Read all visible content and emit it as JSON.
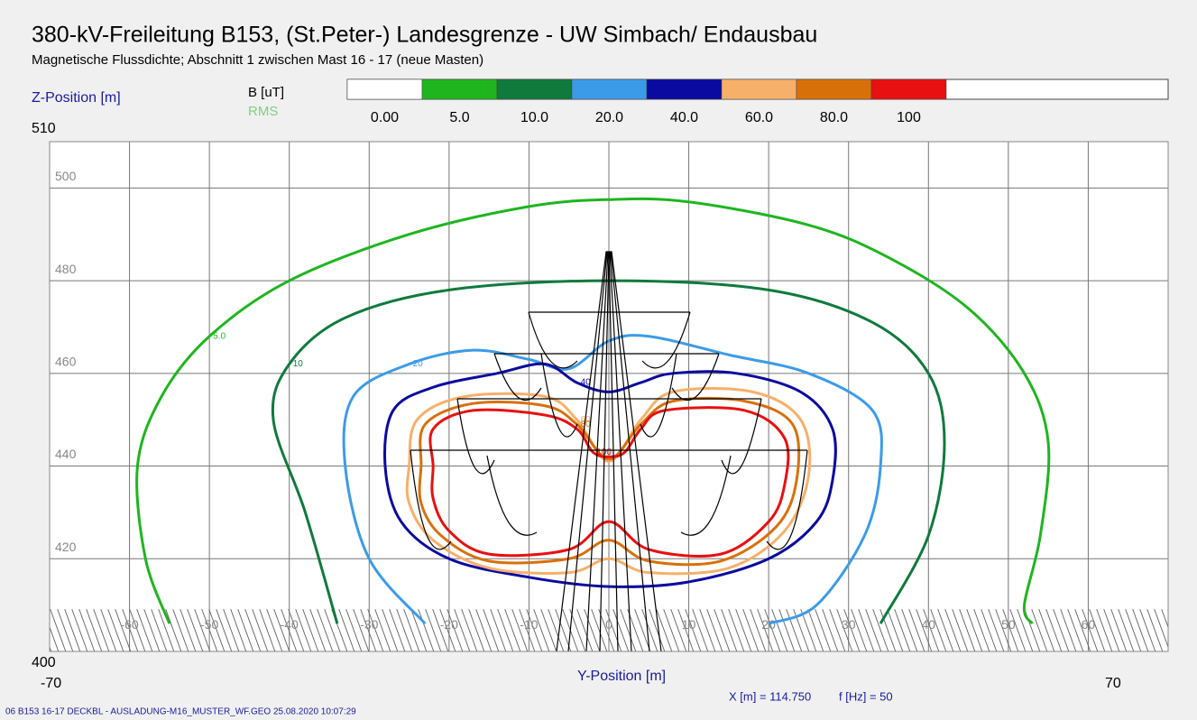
{
  "chart_data": {
    "type": "contour",
    "title": "380-kV-Freileitung B153, (St.Peter-) Landesgrenze - UW Simbach/ Endausbau",
    "subtitle": "Magnetische Flussdichte; Abschnitt 1 zwischen Mast 16 - 17 (neue Masten)",
    "y_axis_label": "Z-Position [m]",
    "x_axis_label": "Y-Position [m]",
    "legend_title": "B [uT]",
    "legend_subtitle": "RMS",
    "legend_levels": [
      {
        "value": 0,
        "label": "0.00",
        "color": "#ffffff"
      },
      {
        "value": 5,
        "label": "5.0",
        "color": "#1fb51f"
      },
      {
        "value": 10,
        "label": "10.0",
        "color": "#0f7a3c"
      },
      {
        "value": 20,
        "label": "20.0",
        "color": "#3c9be8"
      },
      {
        "value": 40,
        "label": "40.0",
        "color": "#0a0aa0"
      },
      {
        "value": 60,
        "label": "60.0",
        "color": "#f7b06a"
      },
      {
        "value": 80,
        "label": "80.0",
        "color": "#d8700a"
      },
      {
        "value": 100,
        "label": "100",
        "color": "#e81010"
      }
    ],
    "xlim": [
      -70,
      70
    ],
    "ylim": [
      400,
      510
    ],
    "xticks": [
      -60,
      -50,
      -40,
      -30,
      -20,
      -10,
      0,
      10,
      20,
      30,
      40,
      50,
      60
    ],
    "yticks": [
      420,
      440,
      460,
      480,
      500
    ],
    "grid": true,
    "ground_level": 406,
    "info_x": "X [m] = 114.750",
    "info_f": "f [Hz] = 50",
    "footer": "06 B153 16-17 DECKBL - AUSLADUNG-M16_MUSTER_WF.GEO  25.08.2020  10:07:29",
    "series": [
      {
        "name": "5.0",
        "color": "#1fb51f",
        "closed": false,
        "x": [
          -55,
          -58,
          -59,
          -56,
          -50,
          -40,
          -25,
          -10,
          0,
          10,
          25,
          35,
          45,
          52,
          55,
          54,
          52,
          53
        ],
        "y": [
          406,
          420,
          440,
          455,
          468,
          480,
          490,
          496,
          497.5,
          497,
          492,
          485,
          474,
          460,
          445,
          425,
          410,
          406
        ]
      },
      {
        "name": "10",
        "color": "#0f7a3c",
        "closed": false,
        "x": [
          -34,
          -38,
          -42,
          -40,
          -33,
          -20,
          0,
          20,
          33,
          40,
          42,
          40,
          34
        ],
        "y": [
          406,
          430,
          450,
          462,
          472,
          478,
          480,
          478,
          471,
          460,
          445,
          425,
          406
        ]
      },
      {
        "name": "20",
        "color": "#3c9be8",
        "closed": false,
        "x": [
          -23,
          -30,
          -33,
          -32,
          -25,
          -17,
          -10,
          -5,
          0,
          5,
          15,
          25,
          33,
          34,
          32,
          26,
          20
        ],
        "y": [
          406,
          420,
          440,
          455,
          462,
          465,
          463,
          461,
          467,
          468,
          464,
          460,
          452,
          440,
          425,
          410,
          406
        ]
      },
      {
        "name": "40",
        "color": "#0a0aa0",
        "closed": true,
        "x": [
          -28,
          -27,
          -22,
          -14,
          -8,
          -4,
          0,
          4,
          8,
          16,
          24,
          28,
          28,
          26,
          20,
          10,
          0,
          -10,
          -20,
          -26
        ],
        "y": [
          440,
          452,
          457,
          460,
          462,
          458,
          456,
          458,
          460,
          460,
          456,
          448,
          437,
          428,
          420,
          415,
          414,
          416,
          420,
          428
        ]
      },
      {
        "name": "60",
        "color": "#f7b06a",
        "closed": true,
        "x": [
          -25,
          -24,
          -18,
          -8,
          -4,
          0,
          4,
          8,
          18,
          24,
          25,
          22,
          15,
          5,
          0,
          -5,
          -15,
          -22,
          -25
        ],
        "y": [
          440,
          450,
          455,
          455,
          450,
          441,
          450,
          456,
          456,
          450,
          438,
          426,
          418,
          417,
          420,
          417,
          418,
          424,
          432
        ]
      },
      {
        "name": "80",
        "color": "#d8700a",
        "closed": true,
        "x": [
          -23.5,
          -23,
          -17,
          -8,
          -4,
          0,
          4,
          8,
          17,
          23,
          23.5,
          21,
          14,
          5,
          0,
          -5,
          -15,
          -21,
          -23.5
        ],
        "y": [
          440,
          449,
          453.5,
          453,
          449,
          441.5,
          449,
          454,
          454,
          449,
          437,
          427,
          419.5,
          419.5,
          424,
          420,
          419.5,
          425,
          432
        ]
      },
      {
        "name": "100",
        "color": "#e81010",
        "closed": true,
        "x": [
          -22,
          -22,
          -17,
          -8,
          -4,
          -2,
          0,
          2,
          4,
          7,
          17,
          22,
          22,
          20,
          14,
          5,
          0,
          -5,
          -15,
          -20,
          -22
        ],
        "y": [
          440,
          448,
          452,
          451,
          448,
          443,
          442,
          443,
          448,
          452,
          452,
          446,
          436,
          428,
          421,
          422,
          428,
          422,
          421,
          426,
          433
        ]
      }
    ]
  }
}
